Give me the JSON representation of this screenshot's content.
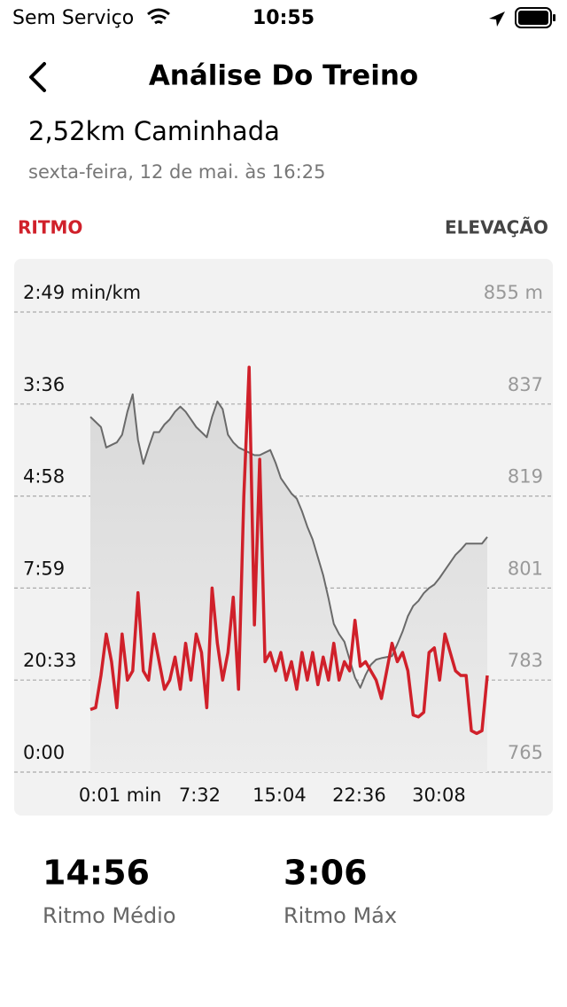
{
  "status_bar": {
    "carrier": "Sem Serviço",
    "time": "10:55"
  },
  "header": {
    "title": "Análise Do Treino"
  },
  "workout": {
    "title": "2,52km Caminhada",
    "date": "sexta-feira, 12 de mai. às 16:25"
  },
  "chart_data": {
    "type": "line",
    "x": [
      -2.8,
      -2.3,
      -1.8,
      -1.3,
      -0.8,
      -0.3,
      0.2,
      0.7,
      1.2,
      1.7,
      2.2,
      2.7,
      3.2,
      3.7,
      4.2,
      4.7,
      5.2,
      5.7,
      6.2,
      6.7,
      7.2,
      7.7,
      8.2,
      8.7,
      9.2,
      9.7,
      10.2,
      10.7,
      11.2,
      11.7,
      12.2,
      12.7,
      13.2,
      13.7,
      14.2,
      14.7,
      15.2,
      15.7,
      16.2,
      16.7,
      17.2,
      17.7,
      18.2,
      18.7,
      19.2,
      19.7,
      20.2,
      20.7,
      21.2,
      21.7,
      22.2,
      22.7,
      23.2,
      23.7,
      24.2,
      24.7,
      25.2,
      25.7,
      26.2,
      26.7,
      27.2,
      27.7,
      28.2,
      28.7,
      29.2,
      29.7,
      30.2,
      30.7,
      31.2,
      31.7,
      32.2,
      32.7,
      33.2,
      33.7,
      34.2,
      34.7
    ],
    "xlim": [
      -2.8,
      34.7
    ],
    "xticks": [
      {
        "value": 0.0167,
        "label": "0:01 min"
      },
      {
        "value": 7.533,
        "label": "7:32"
      },
      {
        "value": 15.067,
        "label": "15:04"
      },
      {
        "value": 22.6,
        "label": "22:36"
      },
      {
        "value": 30.133,
        "label": "30:08"
      }
    ],
    "ylim": [
      0,
      5
    ],
    "yticks": [
      {
        "value": 5,
        "label": "2:49 min/km"
      },
      {
        "value": 4,
        "label": "3:36"
      },
      {
        "value": 3,
        "label": "4:58"
      },
      {
        "value": 2,
        "label": "7:59"
      },
      {
        "value": 1,
        "label": "20:33"
      },
      {
        "value": 0,
        "label": "0:00"
      }
    ],
    "y2lim": [
      765,
      855
    ],
    "y2ticks": [
      {
        "value": 855,
        "label": "855 m"
      },
      837,
      819,
      801,
      783,
      765
    ],
    "grid": true,
    "series": [
      {
        "name": "ELEVAÇÃO",
        "color": "#6a6a6a",
        "axis": "y2",
        "values": [
          834.5,
          833.5,
          832.5,
          828.5,
          829,
          829.5,
          831,
          835.5,
          838.9,
          830,
          825.3,
          828.5,
          831.5,
          831.5,
          833,
          834,
          835.5,
          836.5,
          835.5,
          834,
          832.5,
          831.5,
          830.5,
          834.5,
          837.5,
          836,
          831,
          829.5,
          828.5,
          828,
          827.5,
          827,
          827,
          827.5,
          828,
          825.5,
          822.5,
          821,
          819.5,
          818.5,
          816,
          813,
          810.5,
          807,
          803.5,
          799,
          794,
          792,
          790.5,
          787,
          783.5,
          781.5,
          784,
          786,
          787,
          787.3,
          787.5,
          787.7,
          790,
          792.5,
          795.5,
          797.5,
          798.5,
          800,
          801,
          801.7,
          803,
          804.5,
          806,
          807.5,
          808.5,
          809.7,
          809.7,
          809.7,
          809.7,
          811
        ]
      },
      {
        "name": "RITMO",
        "color": "#d0202a",
        "values": [
          0.68,
          0.7,
          1.05,
          1.5,
          1.2,
          0.7,
          1.5,
          1.0,
          1.1,
          1.95,
          1.1,
          1.0,
          1.5,
          1.2,
          0.9,
          1.0,
          1.25,
          0.9,
          1.4,
          1.0,
          1.5,
          1.3,
          0.7,
          2.0,
          1.4,
          1.0,
          1.3,
          1.9,
          0.9,
          3.0,
          4.4,
          1.6,
          3.4,
          1.2,
          1.3,
          1.1,
          1.3,
          1.0,
          1.2,
          0.9,
          1.3,
          1.0,
          1.3,
          0.95,
          1.25,
          1.0,
          1.4,
          1.0,
          1.2,
          1.1,
          1.65,
          1.15,
          1.2,
          1.1,
          1.0,
          0.8,
          1.1,
          1.4,
          1.2,
          1.3,
          1.1,
          0.62,
          0.6,
          0.65,
          1.3,
          1.35,
          1.0,
          1.5,
          1.3,
          1.1,
          1.05,
          1.05,
          0.45,
          0.42,
          0.45,
          1.05
        ]
      }
    ]
  },
  "stats": [
    {
      "value": "14:56",
      "label": "Ritmo Médio"
    },
    {
      "value": "3:06",
      "label": "Ritmo Máx"
    }
  ]
}
